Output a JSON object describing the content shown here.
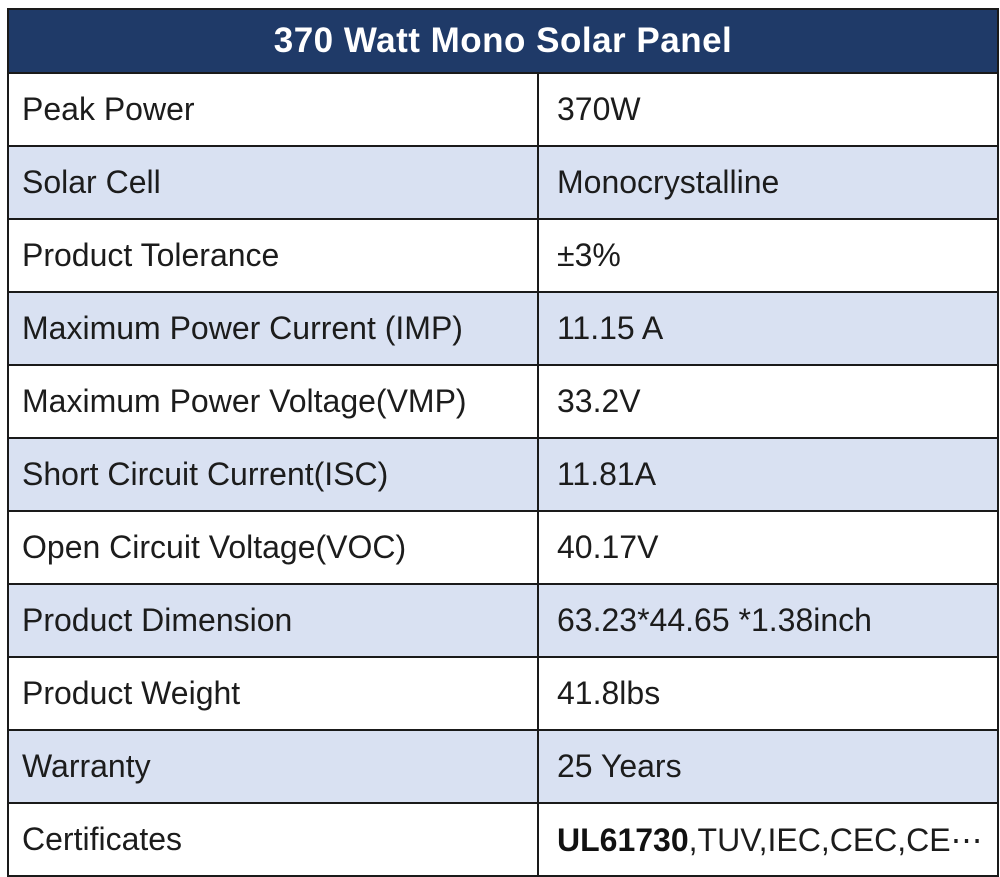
{
  "table": {
    "title": "370 Watt Mono Solar Panel",
    "rows": [
      {
        "label": "Peak Power",
        "value": "370W"
      },
      {
        "label": "Solar Cell",
        "value": "Monocrystalline"
      },
      {
        "label": "Product Tolerance",
        "value": "±3%"
      },
      {
        "label": "Maximum Power Current (IMP)",
        "value": "11.15 A"
      },
      {
        "label": "Maximum Power Voltage(VMP)",
        "value": "33.2V"
      },
      {
        "label": "Short Circuit Current(ISC)",
        "value": "11.81A"
      },
      {
        "label": "Open Circuit Voltage(VOC)",
        "value": "40.17V"
      },
      {
        "label": "Product Dimension",
        "value": "63.23*44.65 *1.38inch"
      },
      {
        "label": "Product Weight",
        "value": "41.8lbs"
      },
      {
        "label": "Warranty",
        "value": "25 Years"
      },
      {
        "label": "Certificates",
        "value_bold": "UL61730",
        "value_rest": ",TUV,IEC,CEC,CE⋯"
      }
    ],
    "colors": {
      "header_bg": "#1f3a68",
      "header_text": "#ffffff",
      "row_bg": "#ffffff",
      "row_alt_bg": "#d9e1f2",
      "border": "#1a1a1a",
      "text": "#1c1c1c"
    }
  }
}
